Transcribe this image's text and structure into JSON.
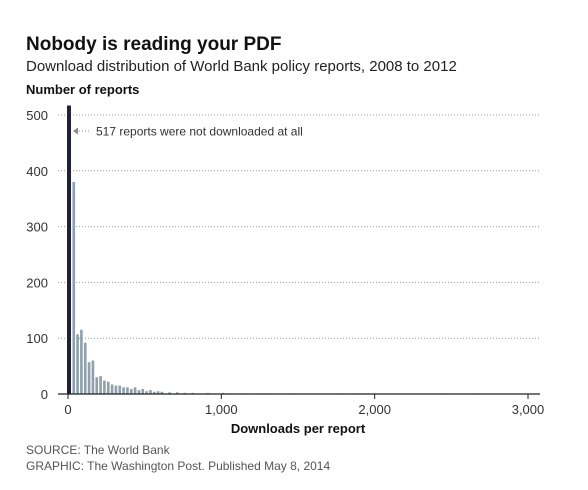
{
  "title": "Nobody is reading your PDF",
  "subtitle": "Download distribution of World Bank policy reports, 2008 to 2012",
  "source_line": "SOURCE: The World Bank",
  "graphic_line": "GRAPHIC: The Washington Post. Published May 8, 2014",
  "colors": {
    "highlight": "#1f2236",
    "bars": "#8fa0aa",
    "grid": "#999999",
    "annotation": "#333333"
  },
  "chart_data": {
    "type": "bar",
    "xlabel": "Downloads per report",
    "ylabel": "Number of reports",
    "xlim": [
      0,
      3000
    ],
    "ylim": [
      0,
      520
    ],
    "xticks": [
      0,
      1000,
      2000,
      3000
    ],
    "xtick_labels": [
      "0",
      "1,000",
      "2,000",
      "3,000"
    ],
    "yticks": [
      0,
      100,
      200,
      300,
      400,
      500
    ],
    "ytick_labels": [
      "0",
      "100",
      "200",
      "300",
      "400",
      "500"
    ],
    "grid": true,
    "annotation": {
      "text": "517 reports were not downloaded at all",
      "x": 0,
      "y": 517
    },
    "zero_bin": {
      "x": 0,
      "value": 517
    },
    "bin_width": 25,
    "bins": [
      {
        "x": 25,
        "value": 380
      },
      {
        "x": 50,
        "value": 107
      },
      {
        "x": 75,
        "value": 115
      },
      {
        "x": 100,
        "value": 92
      },
      {
        "x": 125,
        "value": 57
      },
      {
        "x": 150,
        "value": 60
      },
      {
        "x": 175,
        "value": 30
      },
      {
        "x": 200,
        "value": 32
      },
      {
        "x": 225,
        "value": 24
      },
      {
        "x": 250,
        "value": 22
      },
      {
        "x": 275,
        "value": 17
      },
      {
        "x": 300,
        "value": 15
      },
      {
        "x": 325,
        "value": 15
      },
      {
        "x": 350,
        "value": 12
      },
      {
        "x": 375,
        "value": 12
      },
      {
        "x": 400,
        "value": 9
      },
      {
        "x": 425,
        "value": 12
      },
      {
        "x": 450,
        "value": 7
      },
      {
        "x": 475,
        "value": 9
      },
      {
        "x": 500,
        "value": 5
      },
      {
        "x": 525,
        "value": 7
      },
      {
        "x": 550,
        "value": 4
      },
      {
        "x": 575,
        "value": 5
      },
      {
        "x": 600,
        "value": 4
      },
      {
        "x": 650,
        "value": 3
      },
      {
        "x": 700,
        "value": 3
      },
      {
        "x": 750,
        "value": 2
      },
      {
        "x": 800,
        "value": 2
      },
      {
        "x": 900,
        "value": 2
      },
      {
        "x": 1000,
        "value": 2
      },
      {
        "x": 1150,
        "value": 1
      },
      {
        "x": 1250,
        "value": 1
      },
      {
        "x": 1300,
        "value": 1
      },
      {
        "x": 1450,
        "value": 1
      },
      {
        "x": 1750,
        "value": 1
      },
      {
        "x": 1850,
        "value": 1
      },
      {
        "x": 1900,
        "value": 1
      },
      {
        "x": 2450,
        "value": 1
      },
      {
        "x": 2650,
        "value": 1
      },
      {
        "x": 2950,
        "value": 1
      }
    ]
  }
}
